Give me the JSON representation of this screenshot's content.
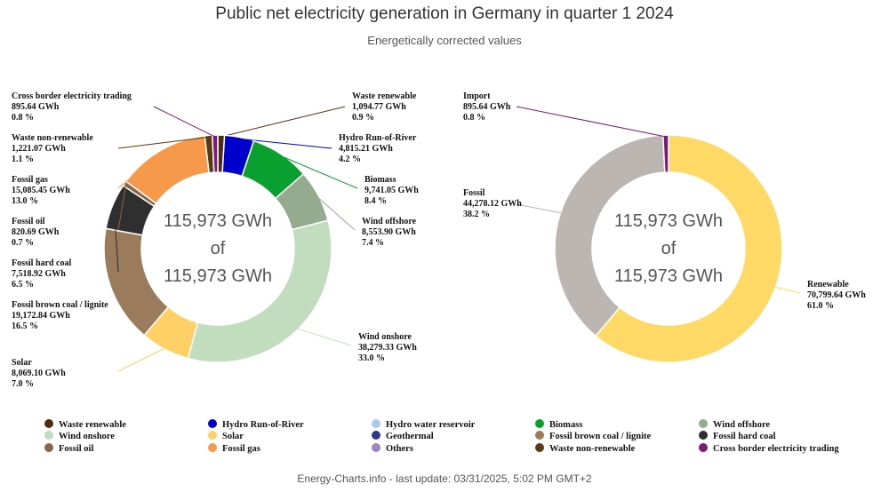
{
  "title": "Public net electricity generation in Germany in quarter 1 2024",
  "subtitle": "Energetically corrected values",
  "footer": "Energy-Charts.info - last update: 03/31/2025, 5:02 PM GMT+2",
  "chart_data": [
    {
      "type": "pie",
      "variant": "donut",
      "center_text": [
        "115,973 GWh",
        "of",
        "115,973 GWh"
      ],
      "unit": "GWh",
      "slices": [
        {
          "name": "Waste renewable",
          "value": 1094.77,
          "value_label": "1,094.77 GWh",
          "percent_label": "0.9 %",
          "color": "#4d2f10"
        },
        {
          "name": "Hydro Run-of-River",
          "value": 4815.21,
          "value_label": "4,815.21 GWh",
          "percent_label": "4.2 %",
          "color": "#0000cc"
        },
        {
          "name": "Hydro water reservoir",
          "value": 0,
          "color": "#a8c8f0"
        },
        {
          "name": "Biomass",
          "value": 9741.05,
          "value_label": "9,741.05 GWh",
          "percent_label": "8.4 %",
          "color": "#0aa02f"
        },
        {
          "name": "Wind offshore",
          "value": 8553.9,
          "value_label": "8,553.90 GWh",
          "percent_label": "7.4 %",
          "color": "#94ab90"
        },
        {
          "name": "Wind onshore",
          "value": 38279.33,
          "value_label": "38,279.33 GWh",
          "percent_label": "33.0 %",
          "color": "#c2dcbe"
        },
        {
          "name": "Solar",
          "value": 8069.1,
          "value_label": "8,069.10 GWh",
          "percent_label": "7.0 %",
          "color": "#ffd066"
        },
        {
          "name": "Geothermal",
          "value": 0,
          "color": "#2b3a8f"
        },
        {
          "name": "Fossil brown coal / lignite",
          "value": 19172.84,
          "value_label": "19,172.84 GWh",
          "percent_label": "16.5 %",
          "color": "#9a7b5c"
        },
        {
          "name": "Fossil hard coal",
          "value": 7518.92,
          "value_label": "7,518.92 GWh",
          "percent_label": "6.5 %",
          "color": "#2f2f2f"
        },
        {
          "name": "Fossil oil",
          "value": 820.69,
          "value_label": "820.69 GWh",
          "percent_label": "0.7 %",
          "color": "#8a6648"
        },
        {
          "name": "Fossil gas",
          "value": 15085.45,
          "value_label": "15,085.45 GWh",
          "percent_label": "13.0 %",
          "color": "#f7994a"
        },
        {
          "name": "Others",
          "value": 0,
          "color": "#9b86c0"
        },
        {
          "name": "Waste non-renewable",
          "value": 1221.07,
          "value_label": "1,221.07 GWh",
          "percent_label": "1.1 %",
          "color": "#5a3a12"
        },
        {
          "name": "Cross border electricity trading",
          "value": 895.64,
          "value_label": "895.64 GWh",
          "percent_label": "0.8 %",
          "color": "#7d1a7d"
        }
      ]
    },
    {
      "type": "pie",
      "variant": "donut",
      "center_text": [
        "115,973 GWh",
        "of",
        "115,973 GWh"
      ],
      "unit": "GWh",
      "slices": [
        {
          "name": "Renewable",
          "value": 70799.64,
          "value_label": "70,799.64 GWh",
          "percent_label": "61.0 %",
          "color": "#ffd966"
        },
        {
          "name": "Fossil",
          "value": 44278.12,
          "value_label": "44,278.12 GWh",
          "percent_label": "38.2 %",
          "color": "#bbb6b2"
        },
        {
          "name": "Import",
          "value": 895.64,
          "value_label": "895.64 GWh",
          "percent_label": "0.8 %",
          "color": "#7d1a7d"
        }
      ]
    }
  ]
}
